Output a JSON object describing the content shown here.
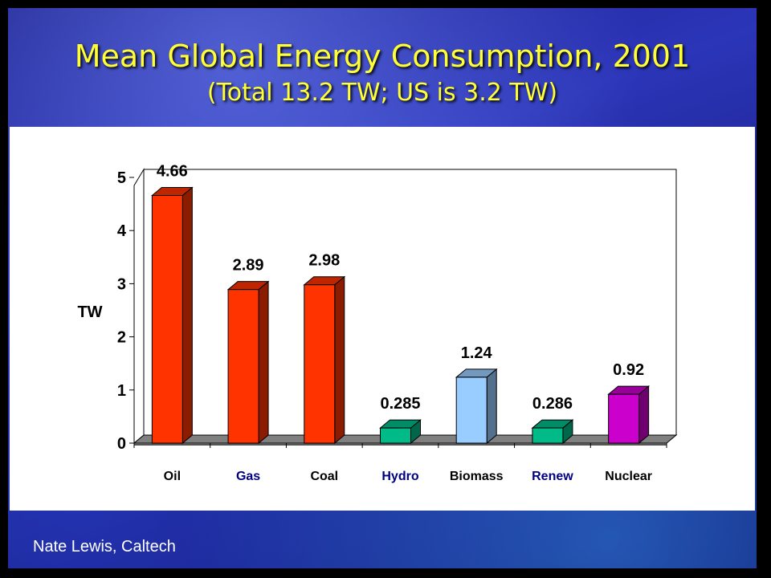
{
  "slide": {
    "title": "Mean Global Energy Consumption, 2001",
    "subtitle": "(Total 13.2 TW; US is 3.2 TW)",
    "credit": "Nate Lewis, Caltech"
  },
  "chart_data": {
    "type": "bar",
    "categories": [
      "Oil",
      "Gas",
      "Coal",
      "Hydro",
      "Biomass",
      "Renew",
      "Nuclear"
    ],
    "values": [
      4.66,
      2.89,
      2.98,
      0.285,
      1.24,
      0.286,
      0.92
    ],
    "value_labels": [
      "4.66",
      "2.89",
      "2.98",
      "0.285",
      "1.24",
      "0.286",
      "0.92"
    ],
    "ylabel": "TW",
    "ylim": [
      0,
      5
    ],
    "yticks": [
      "0",
      "1",
      "2",
      "3",
      "4",
      "5"
    ],
    "bar_colors": [
      "#ff3300",
      "#ff3300",
      "#ff3300",
      "#00bb88",
      "#99ccff",
      "#00bb88",
      "#cc00cc"
    ],
    "category_label_colors": [
      "#000000",
      "#000080",
      "#000000",
      "#000080",
      "#000000",
      "#000080",
      "#000000"
    ],
    "style": "3d-bar",
    "grid": false,
    "legend": "none"
  }
}
